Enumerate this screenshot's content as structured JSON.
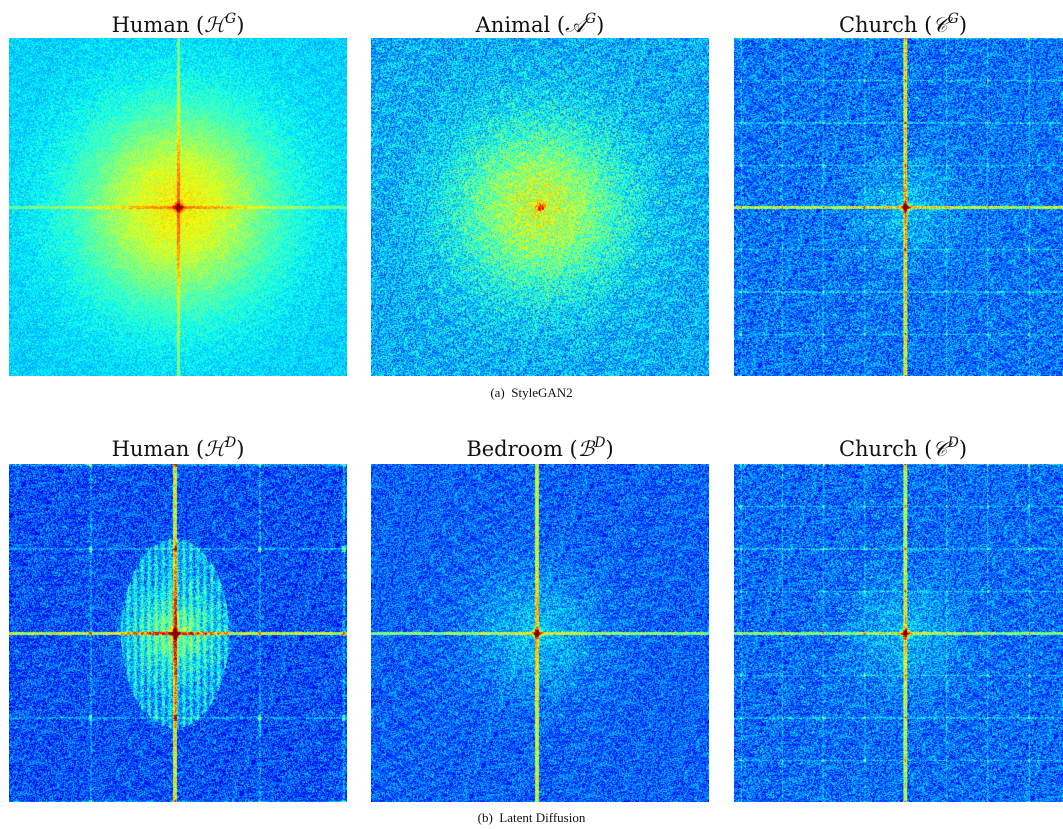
{
  "row_a": {
    "caption_label": "(a)",
    "caption_text": "StyleGAN2",
    "panels": [
      {
        "name": "Human",
        "symbol": "ℋ",
        "sup": "G"
      },
      {
        "name": "Animal",
        "symbol": "𝒜",
        "sup": "G"
      },
      {
        "name": "Church",
        "symbol": "𝒞",
        "sup": "G"
      }
    ]
  },
  "row_b": {
    "caption_label": "(b)",
    "caption_text": "Latent Diffusion",
    "panels": [
      {
        "name": "Human",
        "symbol": "ℋ",
        "sup": "D"
      },
      {
        "name": "Bedroom",
        "symbol": "ℬ",
        "sup": "D"
      },
      {
        "name": "Church",
        "symbol": "𝒞",
        "sup": "D"
      }
    ]
  },
  "colormap": "jet",
  "colors": {
    "low": "#1f6fe0",
    "mid": "#00c8ff",
    "high": "#c8f060",
    "peak": "#e01010"
  }
}
